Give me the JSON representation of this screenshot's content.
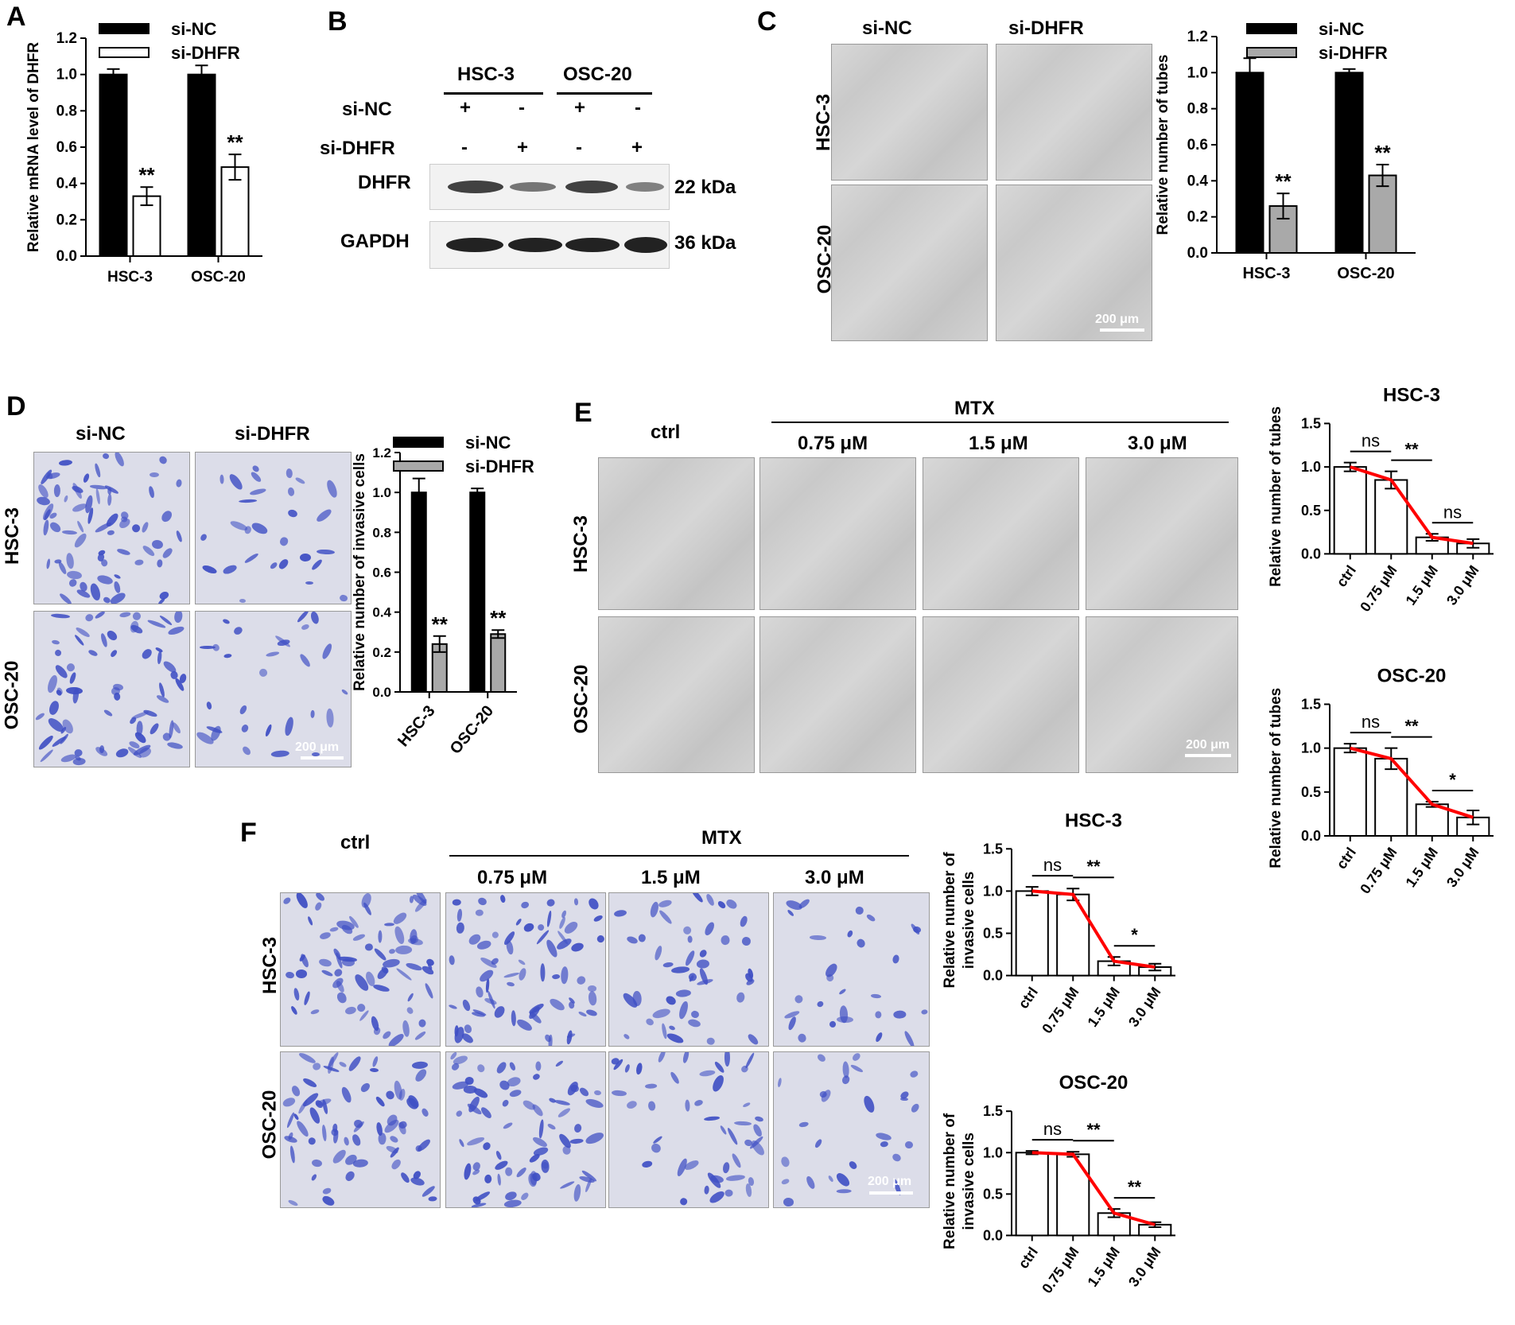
{
  "colors": {
    "black": "#000000",
    "white": "#ffffff",
    "gray": "#a9a9a9",
    "red": "#ff0000",
    "stain": "#3f4fc4"
  },
  "panels": {
    "A": "A",
    "B": "B",
    "C": "C",
    "D": "D",
    "E": "E",
    "F": "F"
  },
  "labels": {
    "hsc3": "HSC-3",
    "osc20": "OSC-20",
    "si_nc": "si-NC",
    "si_dhfr": "si-DHFR",
    "dhfr": "DHFR",
    "gapdh": "GAPDH",
    "kda22": "22 kDa",
    "kda36": "36 kDa",
    "plus": "+",
    "minus": "-",
    "mtx": "MTX",
    "ctrl": "ctrl",
    "c075": "0.75 μM",
    "c15": "1.5 μM",
    "c30": "3.0 μM",
    "scale": "200 μm"
  },
  "chart_data": [
    {
      "id": "A",
      "type": "bar",
      "categories": [
        "HSC-3",
        "OSC-20"
      ],
      "series": [
        {
          "name": "si-NC",
          "values": [
            1.0,
            1.0
          ],
          "errors": [
            0.03,
            0.05
          ]
        },
        {
          "name": "si-DHFR",
          "values": [
            0.33,
            0.49
          ],
          "errors": [
            0.05,
            0.07
          ]
        }
      ],
      "ylabel": "Relative mRNA level of DHFR",
      "ylim": [
        0,
        1.2
      ],
      "yticks": [
        "0.0",
        "0.2",
        "0.4",
        "0.6",
        "0.8",
        "1.0",
        "1.2"
      ],
      "annotations": [
        "**",
        "**"
      ],
      "legend": "top"
    },
    {
      "id": "C",
      "type": "bar",
      "categories": [
        "HSC-3",
        "OSC-20"
      ],
      "series": [
        {
          "name": "si-NC",
          "values": [
            1.0,
            1.0
          ],
          "errors": [
            0.08,
            0.02
          ]
        },
        {
          "name": "si-DHFR",
          "values": [
            0.26,
            0.43
          ],
          "errors": [
            0.07,
            0.06
          ]
        }
      ],
      "ylabel": "Relative number of tubes",
      "ylim": [
        0,
        1.2
      ],
      "yticks": [
        "0.0",
        "0.2",
        "0.4",
        "0.6",
        "0.8",
        "1.0",
        "1.2"
      ],
      "annotations": [
        "**",
        "**"
      ],
      "legend": "top"
    },
    {
      "id": "D",
      "type": "bar",
      "categories": [
        "HSC-3",
        "OSC-20"
      ],
      "series": [
        {
          "name": "si-NC",
          "values": [
            1.0,
            1.0
          ],
          "errors": [
            0.07,
            0.02
          ]
        },
        {
          "name": "si-DHFR",
          "values": [
            0.24,
            0.29
          ],
          "errors": [
            0.04,
            0.02
          ]
        }
      ],
      "ylabel": "Relative number of invasive cells",
      "ylim": [
        0,
        1.2
      ],
      "yticks": [
        "0.0",
        "0.2",
        "0.4",
        "0.6",
        "0.8",
        "1.0",
        "1.2"
      ],
      "annotations": [
        "**",
        "**"
      ],
      "legend": "top"
    },
    {
      "id": "E1",
      "type": "bar",
      "title": "HSC-3",
      "categories": [
        "ctrl",
        "0.75 μM",
        "1.5 μM",
        "3.0 μM"
      ],
      "values": [
        1.0,
        0.85,
        0.19,
        0.12
      ],
      "errors": [
        0.05,
        0.1,
        0.04,
        0.05
      ],
      "ylabel": "Relative number of tubes",
      "ylim": [
        0,
        1.5
      ],
      "yticks": [
        "0.0",
        "0.5",
        "1.0",
        "1.5"
      ],
      "significance": [
        "ns",
        "**",
        "ns"
      ]
    },
    {
      "id": "E2",
      "type": "bar",
      "title": "OSC-20",
      "categories": [
        "ctrl",
        "0.75 μM",
        "1.5 μM",
        "3.0 μM"
      ],
      "values": [
        1.0,
        0.88,
        0.36,
        0.21
      ],
      "errors": [
        0.05,
        0.12,
        0.03,
        0.08
      ],
      "ylabel": "Relative number of tubes",
      "ylim": [
        0,
        1.5
      ],
      "yticks": [
        "0.0",
        "0.5",
        "1.0",
        "1.5"
      ],
      "significance": [
        "ns",
        "**",
        "*"
      ]
    },
    {
      "id": "F1",
      "type": "bar",
      "title": "HSC-3",
      "categories": [
        "ctrl",
        "0.75 μM",
        "1.5 μM",
        "3.0 μM"
      ],
      "values": [
        1.0,
        0.96,
        0.17,
        0.1
      ],
      "errors": [
        0.05,
        0.07,
        0.05,
        0.04
      ],
      "ylabel": "Relative number of invasive cells",
      "ylim": [
        0,
        1.5
      ],
      "yticks": [
        "0.0",
        "0.5",
        "1.0",
        "1.5"
      ],
      "significance": [
        "ns",
        "**",
        "*"
      ]
    },
    {
      "id": "F2",
      "type": "bar",
      "title": "OSC-20",
      "categories": [
        "ctrl",
        "0.75 μM",
        "1.5 μM",
        "3.0 μM"
      ],
      "values": [
        1.0,
        0.98,
        0.27,
        0.13
      ],
      "errors": [
        0.02,
        0.03,
        0.05,
        0.03
      ],
      "ylabel": "Relative number of invasive cells",
      "ylim": [
        0,
        1.5
      ],
      "yticks": [
        "0.0",
        "0.5",
        "1.0",
        "1.5"
      ],
      "significance": [
        "ns",
        "**",
        "**"
      ]
    }
  ]
}
